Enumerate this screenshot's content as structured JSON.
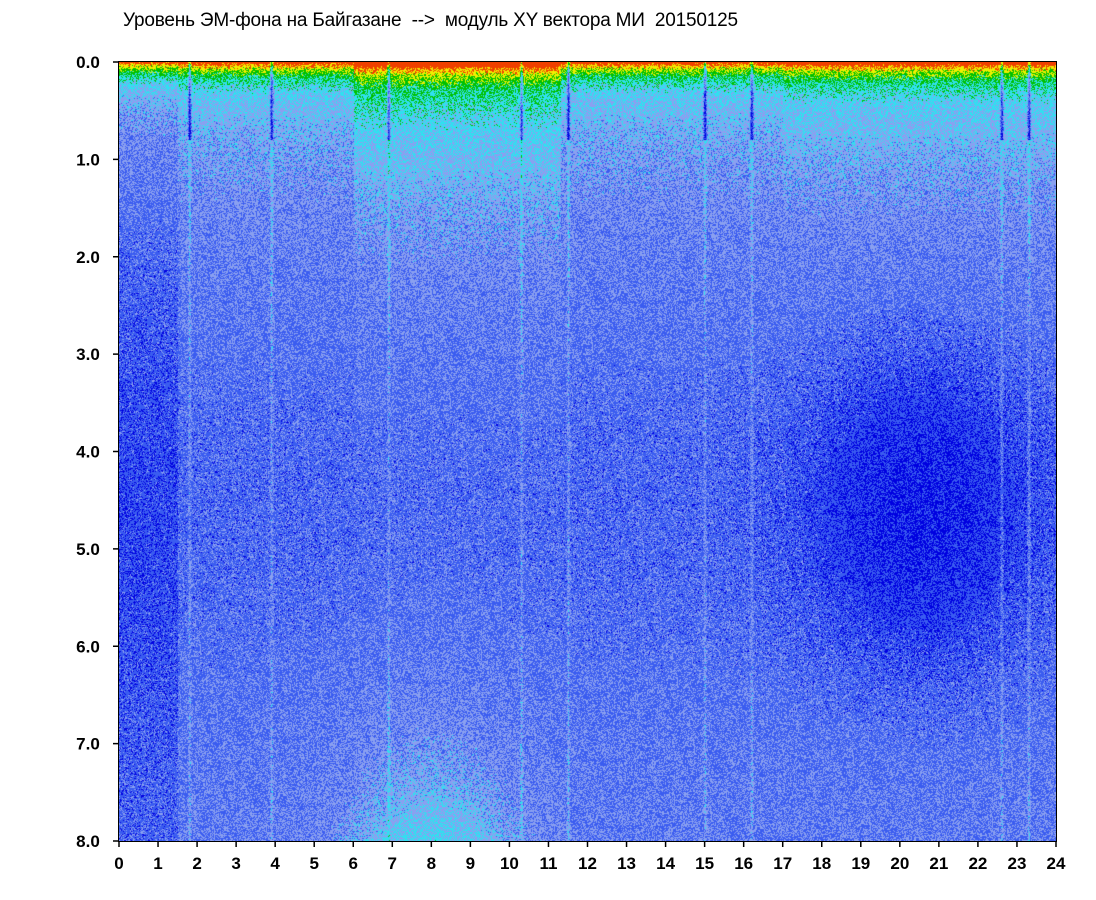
{
  "chart_data": {
    "type": "heatmap",
    "title": "Уровень ЭМ-фона на Байгазане  -->  модуль XY вектора МИ  20150125",
    "xlabel": "",
    "ylabel": "",
    "x_ticks": [
      "0",
      "1",
      "2",
      "3",
      "4",
      "5",
      "6",
      "7",
      "8",
      "9",
      "10",
      "11",
      "12",
      "13",
      "14",
      "15",
      "16",
      "17",
      "18",
      "19",
      "20",
      "21",
      "22",
      "23",
      "24"
    ],
    "y_ticks": [
      "0.0",
      "1.0",
      "2.0",
      "3.0",
      "4.0",
      "5.0",
      "6.0",
      "7.0",
      "8.0"
    ],
    "xlim": [
      0,
      24
    ],
    "ylim": [
      0,
      8
    ],
    "y_inverted": true,
    "colormap": [
      "#0000e0",
      "#3a5cf0",
      "#8aa0f0",
      "#30e0f0",
      "#00c000",
      "#f0f000",
      "#f04000"
    ],
    "intensity_regions": [
      {
        "x": [
          0,
          24
        ],
        "y": [
          0.0,
          0.15
        ],
        "level": "high"
      },
      {
        "x": [
          6,
          11
        ],
        "y": [
          0.15,
          1.5
        ],
        "level": "medium-high"
      },
      {
        "x": [
          5,
          11
        ],
        "y": [
          6.8,
          8.0
        ],
        "level": "medium"
      },
      {
        "x": [
          17,
          23
        ],
        "y": [
          3.0,
          6.5
        ],
        "level": "low"
      }
    ],
    "vertical_streaks": [
      1.8,
      3.9,
      6.9,
      10.3,
      11.5,
      15.0,
      16.2,
      22.6,
      23.3
    ]
  }
}
